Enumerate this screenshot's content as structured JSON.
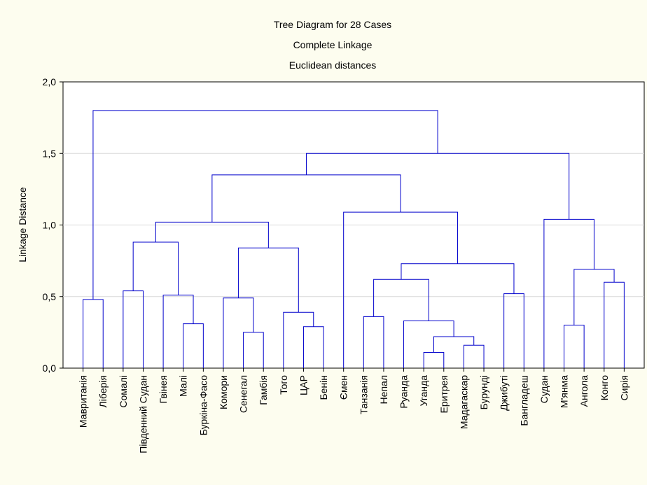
{
  "chart_data": {
    "type": "dendrogram",
    "title": "Tree Diagram for 28 Cases",
    "subtitle": [
      "Complete Linkage",
      "Euclidean distances"
    ],
    "y_label": "Linkage Distance",
    "categories": [
      "Мавританія",
      "Ліберія",
      "Сомалі",
      "Південний Судан",
      "Гвінея",
      "Малі",
      "Буркіна-Фасо",
      "Комори",
      "Сенегал",
      "Гамбія",
      "Того",
      "ЦАР",
      "Бенін",
      "Ємен",
      "Танзанія",
      "Непал",
      "Руанда",
      "Уганда",
      "Еритрея",
      "Мадагаскар",
      "Бурунді",
      "Джибуті",
      "Бангладеш",
      "Судан",
      "М'янма",
      "Ангола",
      "Конго",
      "Сирія"
    ],
    "merges": [
      {
        "children": [
          0,
          1
        ],
        "height": 0.48
      },
      {
        "children": [
          2,
          3
        ],
        "height": 0.54
      },
      {
        "children": [
          5,
          6
        ],
        "height": 0.31
      },
      {
        "children": [
          4,
          30
        ],
        "height": 0.51
      },
      {
        "children": [
          29,
          31
        ],
        "height": 0.88
      },
      {
        "children": [
          8,
          9
        ],
        "height": 0.25
      },
      {
        "children": [
          7,
          33
        ],
        "height": 0.49
      },
      {
        "children": [
          11,
          12
        ],
        "height": 0.29
      },
      {
        "children": [
          10,
          35
        ],
        "height": 0.39
      },
      {
        "children": [
          34,
          36
        ],
        "height": 0.84
      },
      {
        "children": [
          32,
          37
        ],
        "height": 1.02
      },
      {
        "children": [
          14,
          15
        ],
        "height": 0.36
      },
      {
        "children": [
          17,
          18
        ],
        "height": 0.11
      },
      {
        "children": [
          19,
          20
        ],
        "height": 0.16
      },
      {
        "children": [
          40,
          41
        ],
        "height": 0.22
      },
      {
        "children": [
          16,
          42
        ],
        "height": 0.33
      },
      {
        "children": [
          39,
          43
        ],
        "height": 0.62
      },
      {
        "children": [
          21,
          22
        ],
        "height": 0.52
      },
      {
        "children": [
          44,
          45
        ],
        "height": 0.73
      },
      {
        "children": [
          13,
          46
        ],
        "height": 1.09
      },
      {
        "children": [
          38,
          47
        ],
        "height": 1.35
      },
      {
        "children": [
          26,
          27
        ],
        "height": 0.6
      },
      {
        "children": [
          24,
          25
        ],
        "height": 0.3
      },
      {
        "children": [
          50,
          49
        ],
        "height": 0.69
      },
      {
        "children": [
          23,
          51
        ],
        "height": 1.04
      },
      {
        "children": [
          48,
          52
        ],
        "height": 1.5
      },
      {
        "children": [
          28,
          53
        ],
        "height": 1.8
      }
    ],
    "color": "#0000cc",
    "ylim": [
      0,
      2
    ],
    "yticks": [
      {
        "value": 0,
        "label": "0,0"
      },
      {
        "value": 0.5,
        "label": "0,5"
      },
      {
        "value": 1,
        "label": "1,0"
      },
      {
        "value": 1.5,
        "label": "1,5"
      },
      {
        "value": 2,
        "label": "2,0"
      }
    ],
    "grid": true
  }
}
